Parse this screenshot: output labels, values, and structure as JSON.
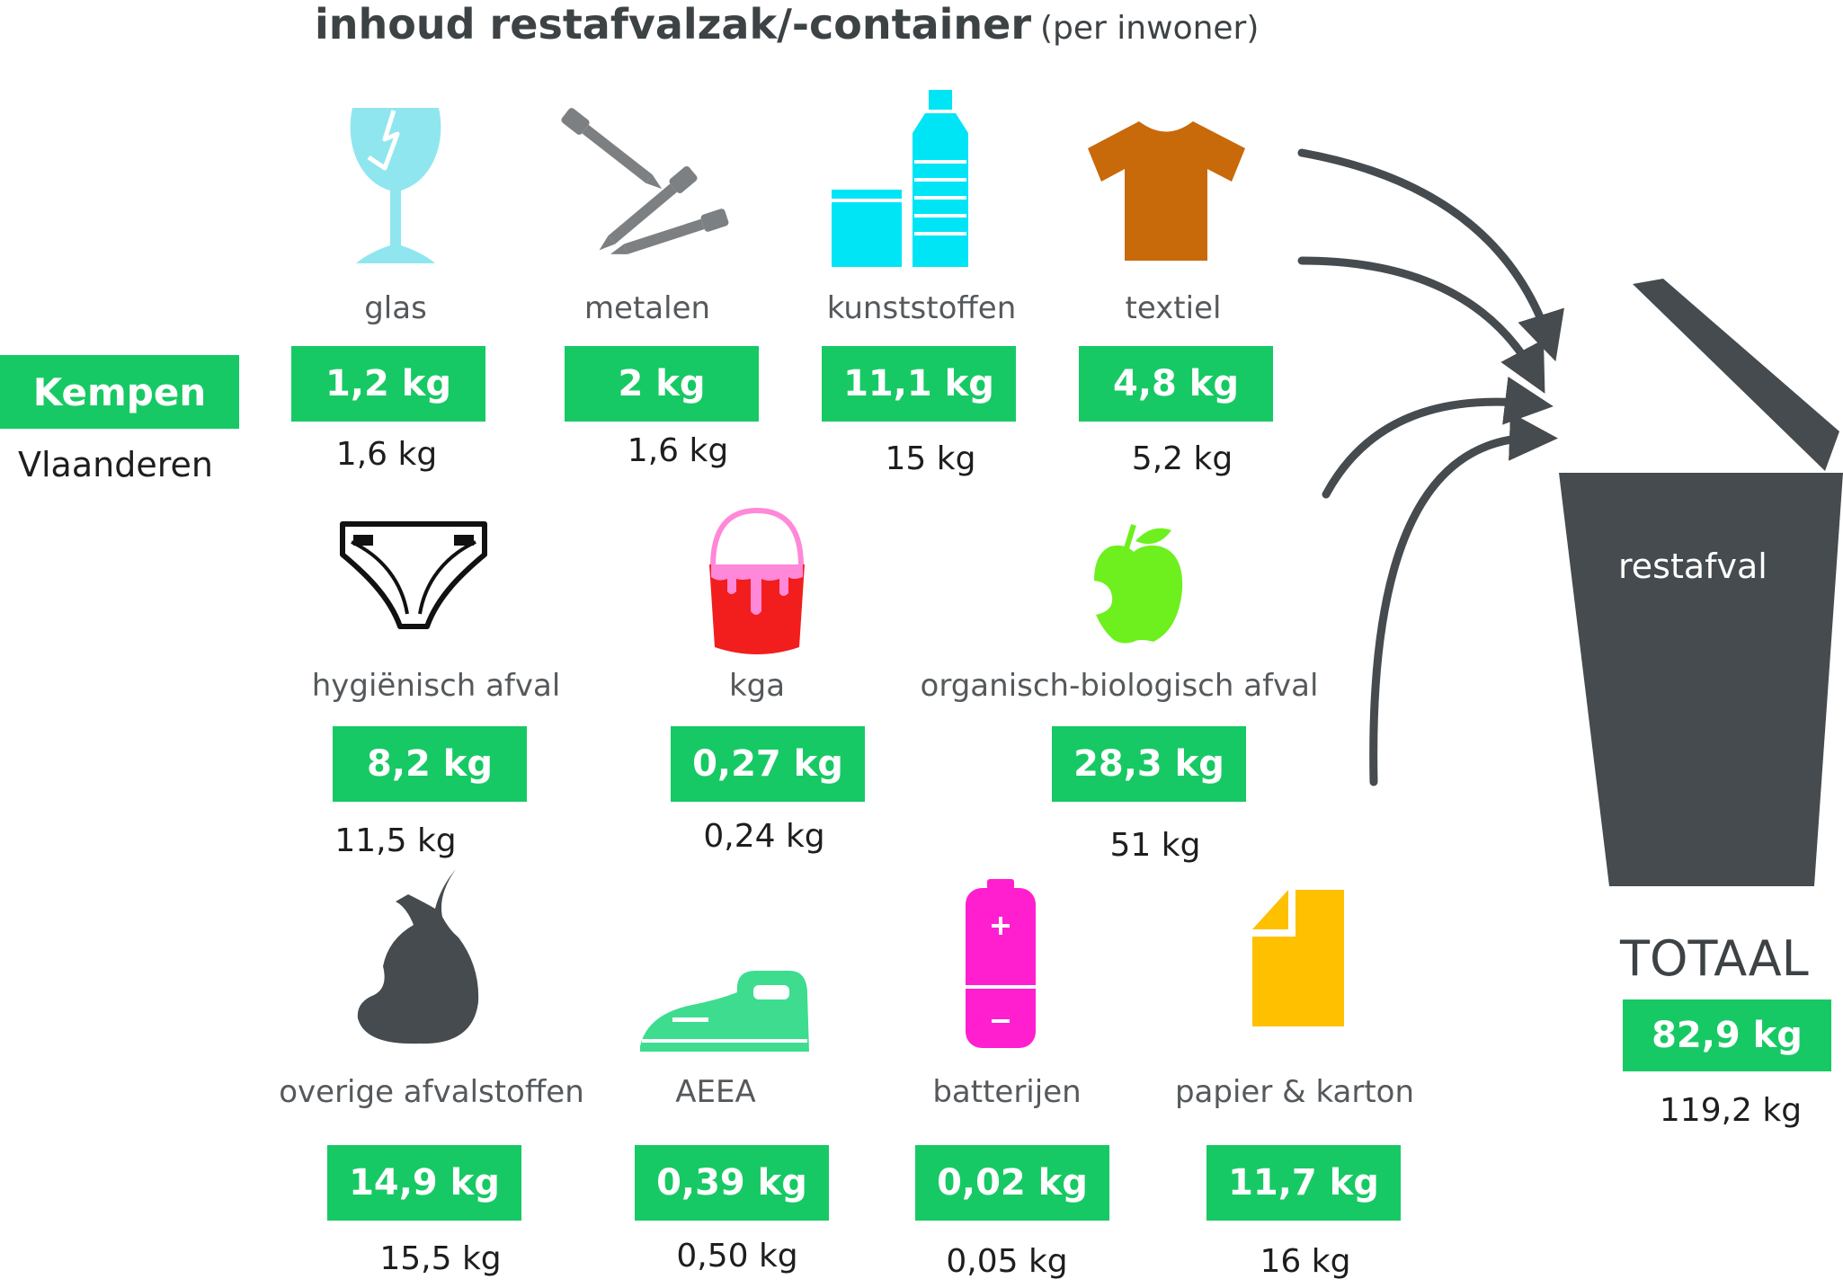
{
  "title": {
    "main": "inhoud restafvalzak/-container",
    "sub": "(per inwoner)"
  },
  "legend": {
    "primary": "Kempen",
    "secondary": "Vlaanderen"
  },
  "colors": {
    "green": "#17c964",
    "dark": "#454b4e",
    "glass": "#8fe6ef",
    "plastic": "#00e5f5",
    "textile": "#c8690a",
    "paint": "#f21d1d",
    "paint_handle": "#ff88d8",
    "apple": "#6df01e",
    "iron": "#3ddc8f",
    "battery": "#ff1fcf",
    "paper": "#ffc000",
    "metal": "#7d8082"
  },
  "categories": [
    {
      "label": "glas",
      "kempen": "1,2 kg",
      "vlaanderen": "1,6 kg",
      "icon": "broken-glass-icon"
    },
    {
      "label": "metalen",
      "kempen": "2 kg",
      "vlaanderen": "1,6 kg",
      "icon": "screws-icon"
    },
    {
      "label": "kunststoffen",
      "kempen": "11,1 kg",
      "vlaanderen": "15 kg",
      "icon": "plastic-bottle-icon"
    },
    {
      "label": "textiel",
      "kempen": "4,8 kg",
      "vlaanderen": "5,2 kg",
      "icon": "tshirt-icon"
    },
    {
      "label": "hygiënisch afval",
      "kempen": "8,2 kg",
      "vlaanderen": "11,5 kg",
      "icon": "diaper-icon"
    },
    {
      "label": "kga",
      "kempen": "0,27 kg",
      "vlaanderen": "0,24 kg",
      "icon": "paint-bucket-icon"
    },
    {
      "label": "organisch-biologisch afval",
      "kempen": "28,3 kg",
      "vlaanderen": "51 kg",
      "icon": "apple-core-icon"
    },
    {
      "label": "overige afvalstoffen",
      "kempen": "14,9 kg",
      "vlaanderen": "15,5 kg",
      "icon": "garbage-bag-icon"
    },
    {
      "label": "AEEA",
      "kempen": "0,39 kg",
      "vlaanderen": "0,50 kg",
      "icon": "iron-icon"
    },
    {
      "label": "batterijen",
      "kempen": "0,02 kg",
      "vlaanderen": "0,05 kg",
      "icon": "battery-icon"
    },
    {
      "label": "papier & karton",
      "kempen": "11,7 kg",
      "vlaanderen": "16 kg",
      "icon": "paper-icon"
    }
  ],
  "bin": {
    "label": "restafval",
    "icon": "trash-bin-icon"
  },
  "total": {
    "label": "TOTAAL",
    "kempen": "82,9 kg",
    "vlaanderen": "119,2 kg"
  }
}
